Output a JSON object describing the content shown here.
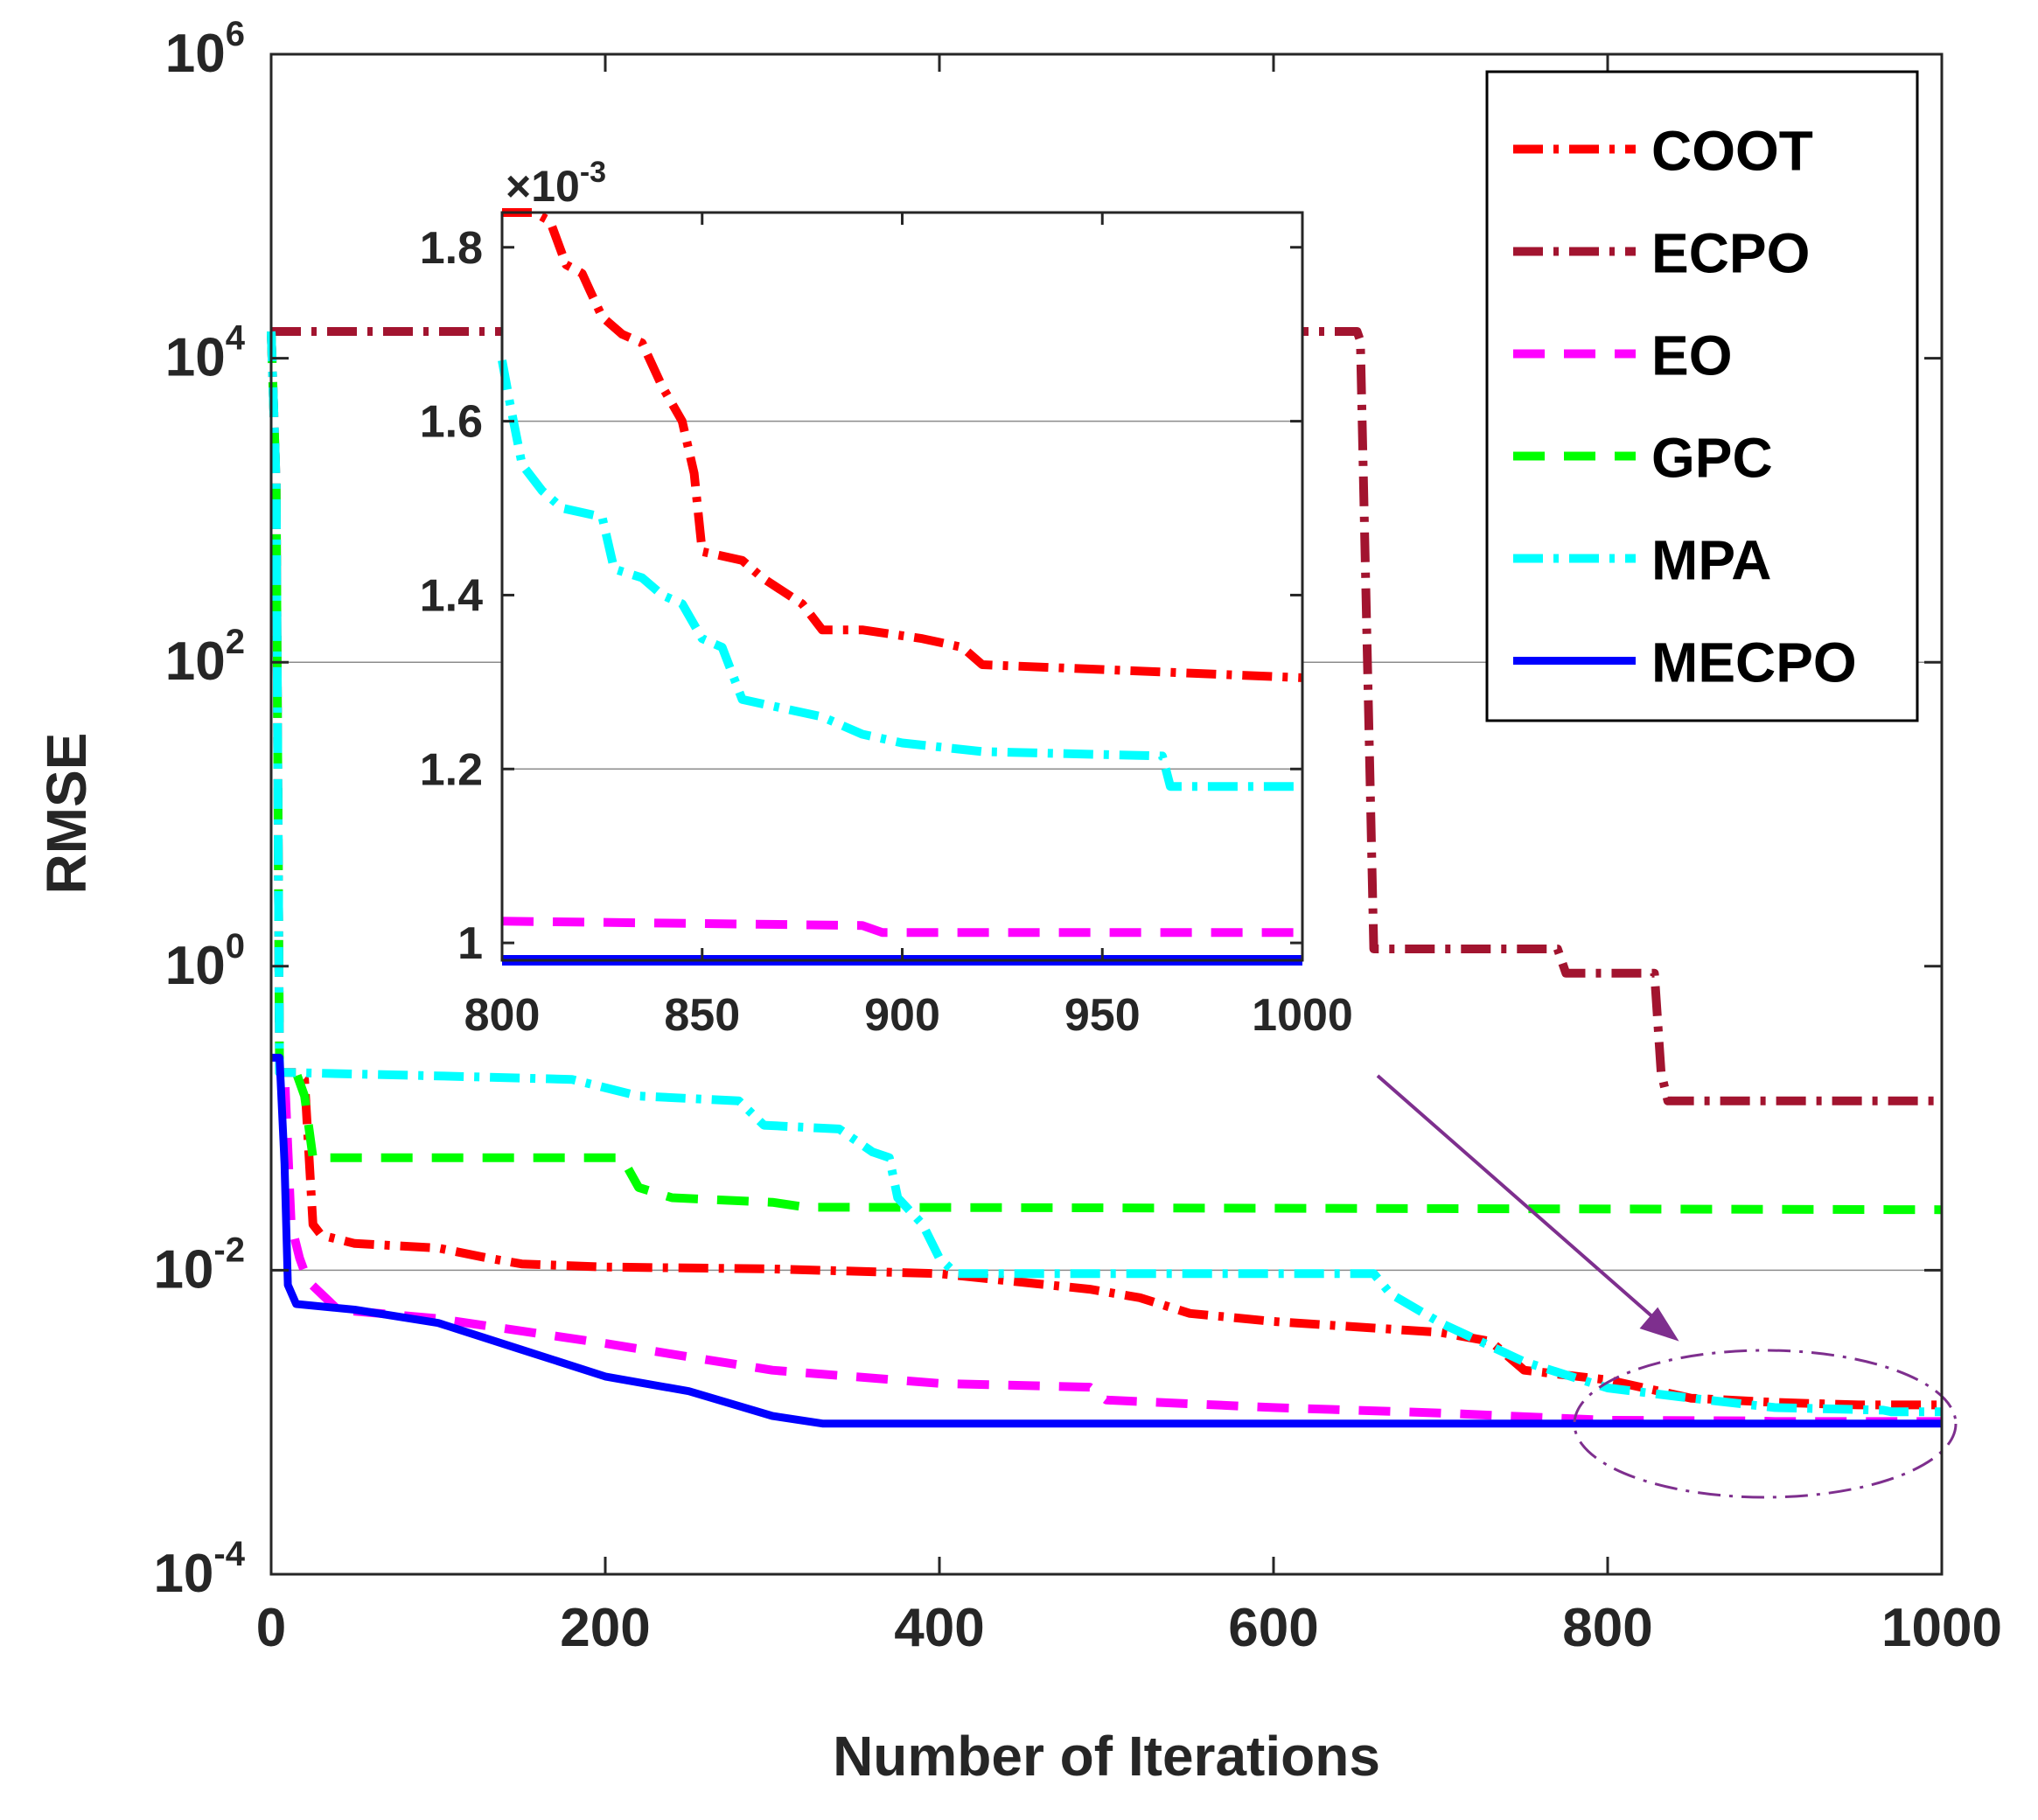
{
  "chart_data": [
    {
      "name": "main",
      "type": "line",
      "xlabel": "Number of Iterations",
      "ylabel": "RMSE",
      "xlim": [
        0,
        1000
      ],
      "ylim": [
        0.0001,
        1000000
      ],
      "yscale": "log",
      "x_ticks": [
        "0",
        "200",
        "400",
        "600",
        "800",
        "1000"
      ],
      "y_ticks": [
        {
          "base": "10",
          "exp": "-4"
        },
        {
          "base": "10",
          "exp": "-2"
        },
        {
          "base": "10",
          "exp": "0"
        },
        {
          "base": "10",
          "exp": "2"
        },
        {
          "base": "10",
          "exp": "4"
        },
        {
          "base": "10",
          "exp": "6"
        }
      ],
      "grid": "horizontal",
      "legend_position": "top-right",
      "series": [
        {
          "name": "COOT",
          "color": "#ff0000",
          "style": "dash-dot",
          "points": [
            [
              0,
              15000
            ],
            [
              3,
              1500
            ],
            [
              5,
              0.2
            ],
            [
              10,
              0.2
            ],
            [
              15,
              0.2
            ],
            [
              20,
              0.18
            ],
            [
              25,
              0.02
            ],
            [
              30,
              0.017
            ],
            [
              50,
              0.015
            ],
            [
              100,
              0.014
            ],
            [
              130,
              0.012
            ],
            [
              150,
              0.011
            ],
            [
              200,
              0.0105
            ],
            [
              300,
              0.0102
            ],
            [
              400,
              0.0095
            ],
            [
              490,
              0.0075
            ],
            [
              520,
              0.0066
            ],
            [
              550,
              0.0052
            ],
            [
              600,
              0.0046
            ],
            [
              700,
              0.0039
            ],
            [
              730,
              0.0034
            ],
            [
              750,
              0.0022
            ],
            [
              800,
              0.0019
            ],
            [
              850,
              0.00144
            ],
            [
              900,
              0.00135
            ],
            [
              950,
              0.0013
            ],
            [
              1000,
              0.0013
            ]
          ]
        },
        {
          "name": "ECPO",
          "color": "#a2142f",
          "style": "dash-dot",
          "points": [
            [
              0,
              15000
            ],
            [
              650,
              15000
            ],
            [
              652,
              13000
            ],
            [
              660,
              1.3
            ],
            [
              770,
              1.3
            ],
            [
              775,
              0.9
            ],
            [
              828,
              0.9
            ],
            [
              832,
              0.2
            ],
            [
              836,
              0.13
            ],
            [
              1000,
              0.13
            ]
          ]
        },
        {
          "name": "EO",
          "color": "#ff00ff",
          "style": "dashed",
          "points": [
            [
              0,
              15000
            ],
            [
              3,
              1500
            ],
            [
              5,
              0.2
            ],
            [
              8,
              0.2
            ],
            [
              12,
              0.02
            ],
            [
              17,
              0.012
            ],
            [
              22,
              0.0085
            ],
            [
              40,
              0.0055
            ],
            [
              100,
              0.0048
            ],
            [
              200,
              0.0033
            ],
            [
              300,
              0.0022
            ],
            [
              400,
              0.0018
            ],
            [
              490,
              0.0017
            ],
            [
              500,
              0.0014
            ],
            [
              600,
              0.00125
            ],
            [
              700,
              0.00115
            ],
            [
              800,
              0.00103
            ],
            [
              890,
              0.00102
            ],
            [
              900,
              0.00101
            ],
            [
              1000,
              0.00101
            ]
          ]
        },
        {
          "name": "GPC",
          "color": "#00ff00",
          "style": "dashed",
          "points": [
            [
              0,
              15000
            ],
            [
              3,
              1500
            ],
            [
              5,
              0.2
            ],
            [
              15,
              0.2
            ],
            [
              20,
              0.14
            ],
            [
              25,
              0.055
            ],
            [
              210,
              0.055
            ],
            [
              220,
              0.035
            ],
            [
              240,
              0.03
            ],
            [
              300,
              0.028
            ],
            [
              320,
              0.026
            ],
            [
              1000,
              0.025
            ]
          ]
        },
        {
          "name": "MPA",
          "color": "#00ffff",
          "style": "dash-dot",
          "points": [
            [
              0,
              15000
            ],
            [
              3,
              1500
            ],
            [
              5,
              0.2
            ],
            [
              10,
              0.2
            ],
            [
              100,
              0.19
            ],
            [
              180,
              0.18
            ],
            [
              220,
              0.14
            ],
            [
              280,
              0.13
            ],
            [
              295,
              0.09
            ],
            [
              340,
              0.085
            ],
            [
              360,
              0.06
            ],
            [
              370,
              0.055
            ],
            [
              375,
              0.03
            ],
            [
              390,
              0.02
            ],
            [
              400,
              0.012
            ],
            [
              410,
              0.0095
            ],
            [
              660,
              0.0095
            ],
            [
              670,
              0.007
            ],
            [
              700,
              0.0045
            ],
            [
              750,
              0.0025
            ],
            [
              800,
              0.00168
            ],
            [
              850,
              0.00144
            ],
            [
              900,
              0.00125
            ],
            [
              965,
              0.0012
            ],
            [
              970,
              0.00117
            ],
            [
              1000,
              0.00117
            ]
          ]
        },
        {
          "name": "MECPO",
          "color": "#0000ff",
          "style": "solid",
          "points": [
            [
              0,
              0.25
            ],
            [
              3,
              0.25
            ],
            [
              5,
              0.25
            ],
            [
              8,
              0.05
            ],
            [
              10,
              0.008
            ],
            [
              15,
              0.006
            ],
            [
              50,
              0.0055
            ],
            [
              100,
              0.0045
            ],
            [
              150,
              0.003
            ],
            [
              200,
              0.002
            ],
            [
              250,
              0.0016
            ],
            [
              300,
              0.0011
            ],
            [
              330,
              0.00098
            ],
            [
              400,
              0.00098
            ],
            [
              1000,
              0.00098
            ]
          ]
        }
      ],
      "annotations": [
        "ellipse highlight around iterations 800–1000",
        "arrow pointing from inset to highlighted region"
      ]
    },
    {
      "name": "inset",
      "type": "line",
      "xlim": [
        800,
        1000
      ],
      "ylim": [
        0.98,
        1.84
      ],
      "y_multiplier": {
        "prefix": "×10",
        "exp": "-3"
      },
      "x_ticks": [
        "800",
        "850",
        "900",
        "950",
        "1000"
      ],
      "y_ticks": [
        "1",
        "1.2",
        "1.4",
        "1.6",
        "1.8"
      ],
      "grid": "horizontal",
      "series": [
        {
          "name": "COOT",
          "color": "#ff0000",
          "style": "dash-dot",
          "points": [
            [
              800,
              1.84
            ],
            [
              808,
              1.84
            ],
            [
              812,
              1.83
            ],
            [
              816,
              1.78
            ],
            [
              820,
              1.77
            ],
            [
              822,
              1.75
            ],
            [
              825,
              1.72
            ],
            [
              830,
              1.7
            ],
            [
              835,
              1.69
            ],
            [
              840,
              1.64
            ],
            [
              845,
              1.6
            ],
            [
              848,
              1.54
            ],
            [
              850,
              1.45
            ],
            [
              860,
              1.44
            ],
            [
              865,
              1.42
            ],
            [
              875,
              1.39
            ],
            [
              880,
              1.36
            ],
            [
              890,
              1.36
            ],
            [
              905,
              1.35
            ],
            [
              915,
              1.34
            ],
            [
              920,
              1.32
            ],
            [
              1000,
              1.305
            ]
          ]
        },
        {
          "name": "MPA",
          "color": "#00ffff",
          "style": "dash-dot",
          "points": [
            [
              800,
              1.67
            ],
            [
              802,
              1.62
            ],
            [
              805,
              1.55
            ],
            [
              810,
              1.52
            ],
            [
              815,
              1.5
            ],
            [
              825,
              1.49
            ],
            [
              828,
              1.43
            ],
            [
              835,
              1.42
            ],
            [
              840,
              1.4
            ],
            [
              845,
              1.39
            ],
            [
              850,
              1.35
            ],
            [
              855,
              1.34
            ],
            [
              860,
              1.28
            ],
            [
              870,
              1.27
            ],
            [
              880,
              1.26
            ],
            [
              890,
              1.24
            ],
            [
              900,
              1.23
            ],
            [
              920,
              1.22
            ],
            [
              965,
              1.215
            ],
            [
              967,
              1.18
            ],
            [
              1000,
              1.18
            ]
          ]
        },
        {
          "name": "EO",
          "color": "#ff00ff",
          "style": "dashed",
          "points": [
            [
              800,
              1.025
            ],
            [
              890,
              1.02
            ],
            [
              895,
              1.012
            ],
            [
              1000,
              1.012
            ]
          ]
        },
        {
          "name": "MECPO",
          "color": "#0000ff",
          "style": "solid",
          "points": [
            [
              800,
              0.98
            ],
            [
              1000,
              0.98
            ]
          ]
        }
      ]
    }
  ]
}
